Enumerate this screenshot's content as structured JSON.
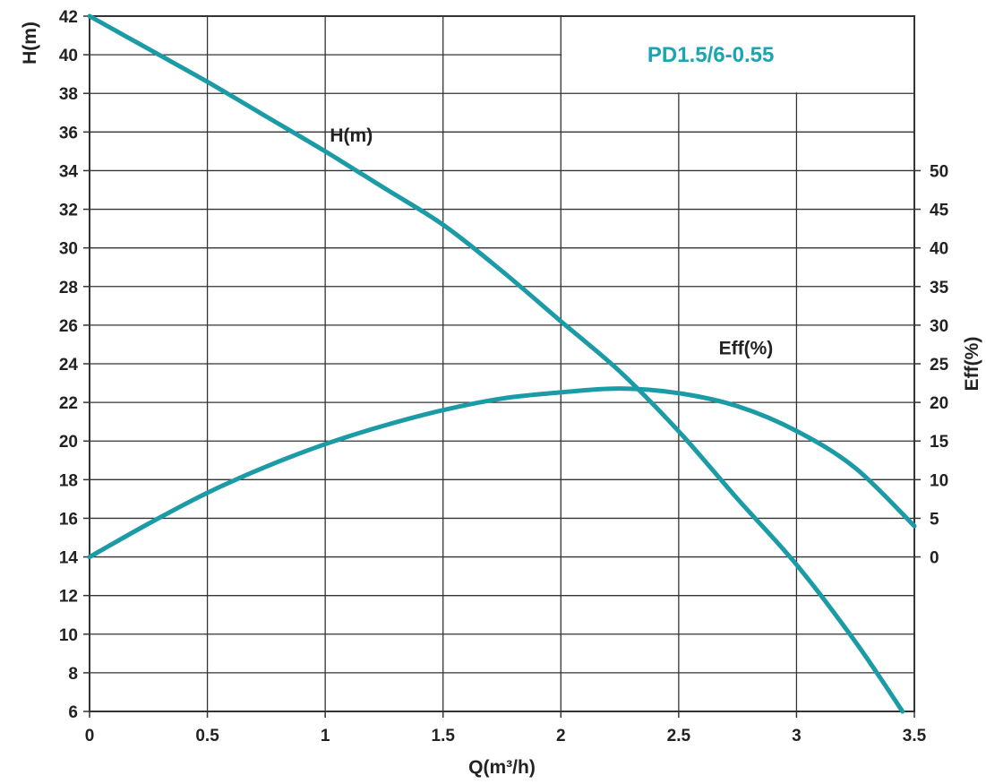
{
  "chart_data": {
    "type": "line",
    "title": "PD1.5/6-0.55",
    "xlabel": "Q(m³/h)",
    "ylabel": "H(m)",
    "y2label": "Eff(%)",
    "xlim": [
      0,
      3.5
    ],
    "ylim": [
      6,
      42
    ],
    "y2lim": [
      0,
      50
    ],
    "x_ticks": [
      0,
      0.5,
      1,
      1.5,
      2,
      2.5,
      3,
      3.5
    ],
    "y_ticks": [
      6,
      8,
      10,
      12,
      14,
      16,
      18,
      20,
      22,
      24,
      26,
      28,
      30,
      32,
      34,
      36,
      38,
      40,
      42
    ],
    "y2_ticks": [
      0,
      5,
      10,
      15,
      20,
      25,
      30,
      35,
      40,
      45,
      50
    ],
    "grid": true,
    "series": [
      {
        "name": "H(m)",
        "axis": "left",
        "x": [
          0,
          0.25,
          0.5,
          0.75,
          1.0,
          1.25,
          1.5,
          1.75,
          2.0,
          2.25,
          2.5,
          2.75,
          3.0,
          3.25,
          3.45
        ],
        "y": [
          42,
          40.3,
          38.6,
          36.8,
          35.0,
          33.1,
          31.2,
          28.8,
          26.2,
          23.6,
          20.5,
          17.0,
          13.6,
          9.6,
          6.0
        ]
      },
      {
        "name": "Eff(%)",
        "axis": "right",
        "x": [
          0,
          0.25,
          0.5,
          0.75,
          1.0,
          1.25,
          1.5,
          1.75,
          2.0,
          2.25,
          2.5,
          2.75,
          3.0,
          3.25,
          3.5
        ],
        "y": [
          0,
          4.3,
          8.3,
          11.7,
          14.6,
          17.0,
          19.0,
          20.5,
          21.3,
          21.8,
          21.2,
          19.5,
          16.3,
          11.5,
          4.0
        ]
      }
    ],
    "colors": {
      "curve": "#1a9ba6",
      "grid": "#333333",
      "model": "#1ba5b0"
    }
  }
}
